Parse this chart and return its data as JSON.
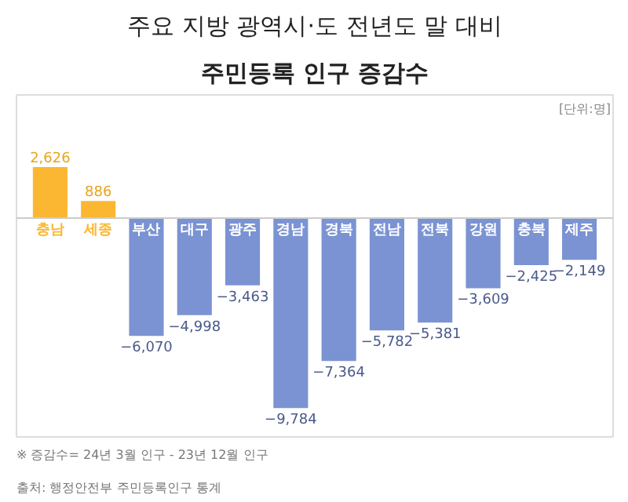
{
  "chart_data": {
    "type": "bar",
    "title": "주요 지방 광역시·도 전년도 말 대비",
    "subtitle": "주민등록 인구 증감수",
    "categories": [
      "충남",
      "세종",
      "부산",
      "대구",
      "광주",
      "경남",
      "경북",
      "전남",
      "전북",
      "강원",
      "충북",
      "제주"
    ],
    "values": [
      2626,
      886,
      -6070,
      -4998,
      -3463,
      -9784,
      -7364,
      -5782,
      -5381,
      -3609,
      -2425,
      -2149
    ],
    "colors": [
      "#fbb731",
      "#fbb731",
      "#7b93d3",
      "#7b93d3",
      "#7b93d3",
      "#7b93d3",
      "#7b93d3",
      "#7b93d3",
      "#7b93d3",
      "#7b93d3",
      "#7b93d3",
      "#7b93d3"
    ],
    "value_labels": [
      "2,626",
      "886",
      "−6,070",
      "−4,998",
      "−3,463",
      "−9,784",
      "−7,364",
      "−5,782",
      "−5,381",
      "−3,609",
      "−2,425",
      "−2,149"
    ],
    "annotations": [
      "[단위:명]",
      "※ 증감수= 24년 3월 인구 - 23년 12월 인구",
      "출처: 행정안전부 주민등록인구 통계"
    ],
    "grid": false
  }
}
